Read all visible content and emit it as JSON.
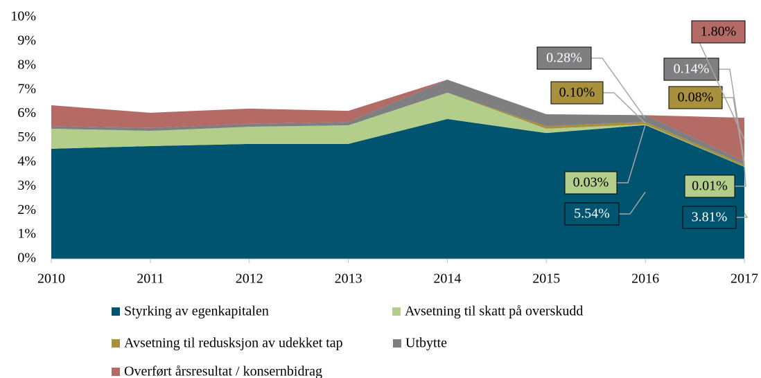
{
  "chart_data": {
    "type": "area",
    "categories": [
      "2010",
      "2011",
      "2012",
      "2013",
      "2014",
      "2015",
      "2016",
      "2017"
    ],
    "series": [
      {
        "name": "Styrking av egenkapitalen",
        "color": "#005470",
        "values": [
          4.56,
          4.67,
          4.76,
          4.76,
          5.79,
          5.21,
          5.54,
          3.81
        ],
        "value_labels": [
          null,
          null,
          null,
          null,
          null,
          null,
          "5.54%",
          "3.81%"
        ]
      },
      {
        "name": "Avsetning til skatt på overskudd",
        "color": "#b3cd8a",
        "values": [
          0.83,
          0.63,
          0.71,
          0.77,
          1.09,
          0.18,
          0.03,
          0.01
        ],
        "value_labels": [
          null,
          null,
          null,
          null,
          null,
          null,
          "0.03%",
          "0.01%"
        ]
      },
      {
        "name": "Avsetning til redusksjon av udekket tap",
        "color": "#a8903c",
        "values": [
          0,
          0,
          0,
          0,
          0,
          0.1,
          0.1,
          0.08
        ],
        "value_labels": [
          null,
          null,
          null,
          null,
          null,
          null,
          "0.10%",
          "0.08%"
        ]
      },
      {
        "name": "Utbytte",
        "color": "#7f7f82",
        "values": [
          0.11,
          0.12,
          0.12,
          0.14,
          0.54,
          0.5,
          0.28,
          0.14
        ],
        "value_labels": [
          null,
          null,
          null,
          null,
          null,
          null,
          "0.28%",
          "0.14%"
        ]
      },
      {
        "name": "Overført årsresultat / konsernbidrag",
        "color": "#b46b66",
        "values": [
          0.86,
          0.63,
          0.63,
          0.46,
          0,
          0,
          0,
          1.8
        ],
        "value_labels": [
          null,
          null,
          null,
          null,
          null,
          null,
          null,
          "1.80%"
        ]
      }
    ],
    "ylim": [
      0,
      10
    ],
    "yticks": [
      {
        "value": 0,
        "label": "0%"
      },
      {
        "value": 1,
        "label": "1%"
      },
      {
        "value": 2,
        "label": "2%"
      },
      {
        "value": 3,
        "label": "3%"
      },
      {
        "value": 4,
        "label": "4%"
      },
      {
        "value": 5,
        "label": "5%"
      },
      {
        "value": 6,
        "label": "6%"
      },
      {
        "value": 7,
        "label": "7%"
      },
      {
        "value": 8,
        "label": "8%"
      },
      {
        "value": 9,
        "label": "9%"
      },
      {
        "value": 10,
        "label": "10%"
      }
    ],
    "legend": "bottom"
  }
}
